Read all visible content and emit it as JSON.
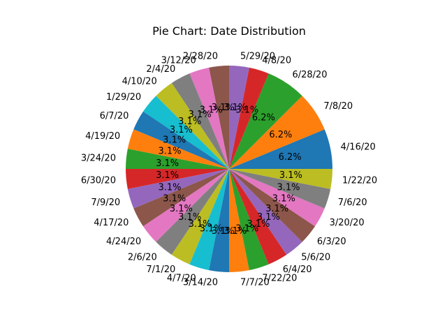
{
  "chart_data": {
    "type": "pie",
    "title": "Pie Chart: Date Distribution",
    "start_angle_deg": 0,
    "direction": "counterclockwise",
    "slices": [
      {
        "label": "4/16/20",
        "percent": 6.2,
        "value": 2,
        "color": "#1f77b4"
      },
      {
        "label": "7/8/20",
        "percent": 6.2,
        "value": 2,
        "color": "#ff7f0e"
      },
      {
        "label": "6/28/20",
        "percent": 6.2,
        "value": 2,
        "color": "#2ca02c"
      },
      {
        "label": "4/8/20",
        "percent": 3.1,
        "value": 1,
        "color": "#d62728"
      },
      {
        "label": "5/29/20",
        "percent": 3.1,
        "value": 1,
        "color": "#9467bd"
      },
      {
        "label": "2/28/20",
        "percent": 3.1,
        "value": 1,
        "color": "#8c564b"
      },
      {
        "label": "3/12/20",
        "percent": 3.1,
        "value": 1,
        "color": "#e377c2"
      },
      {
        "label": "2/4/20",
        "percent": 3.1,
        "value": 1,
        "color": "#7f7f7f"
      },
      {
        "label": "4/10/20",
        "percent": 3.1,
        "value": 1,
        "color": "#bcbd22"
      },
      {
        "label": "1/29/20",
        "percent": 3.1,
        "value": 1,
        "color": "#17becf"
      },
      {
        "label": "6/7/20",
        "percent": 3.1,
        "value": 1,
        "color": "#1f77b4"
      },
      {
        "label": "4/19/20",
        "percent": 3.1,
        "value": 1,
        "color": "#ff7f0e"
      },
      {
        "label": "3/24/20",
        "percent": 3.1,
        "value": 1,
        "color": "#2ca02c"
      },
      {
        "label": "6/30/20",
        "percent": 3.1,
        "value": 1,
        "color": "#d62728"
      },
      {
        "label": "7/9/20",
        "percent": 3.1,
        "value": 1,
        "color": "#9467bd"
      },
      {
        "label": "4/17/20",
        "percent": 3.1,
        "value": 1,
        "color": "#8c564b"
      },
      {
        "label": "4/24/20",
        "percent": 3.1,
        "value": 1,
        "color": "#e377c2"
      },
      {
        "label": "2/6/20",
        "percent": 3.1,
        "value": 1,
        "color": "#7f7f7f"
      },
      {
        "label": "7/1/20",
        "percent": 3.1,
        "value": 1,
        "color": "#bcbd22"
      },
      {
        "label": "4/7/20",
        "percent": 3.1,
        "value": 1,
        "color": "#17becf"
      },
      {
        "label": "3/14/20",
        "percent": 3.1,
        "value": 1,
        "color": "#1f77b4"
      },
      {
        "label": "7/7/20",
        "percent": 3.1,
        "value": 1,
        "color": "#ff7f0e"
      },
      {
        "label": "7/22/20",
        "percent": 3.1,
        "value": 1,
        "color": "#2ca02c"
      },
      {
        "label": "6/4/20",
        "percent": 3.1,
        "value": 1,
        "color": "#d62728"
      },
      {
        "label": "5/6/20",
        "percent": 3.1,
        "value": 1,
        "color": "#9467bd"
      },
      {
        "label": "6/3/20",
        "percent": 3.1,
        "value": 1,
        "color": "#8c564b"
      },
      {
        "label": "3/20/20",
        "percent": 3.1,
        "value": 1,
        "color": "#e377c2"
      },
      {
        "label": "7/6/20",
        "percent": 3.1,
        "value": 1,
        "color": "#7f7f7f"
      },
      {
        "label": "1/22/20",
        "percent": 3.1,
        "value": 1,
        "color": "#bcbd22"
      }
    ]
  }
}
